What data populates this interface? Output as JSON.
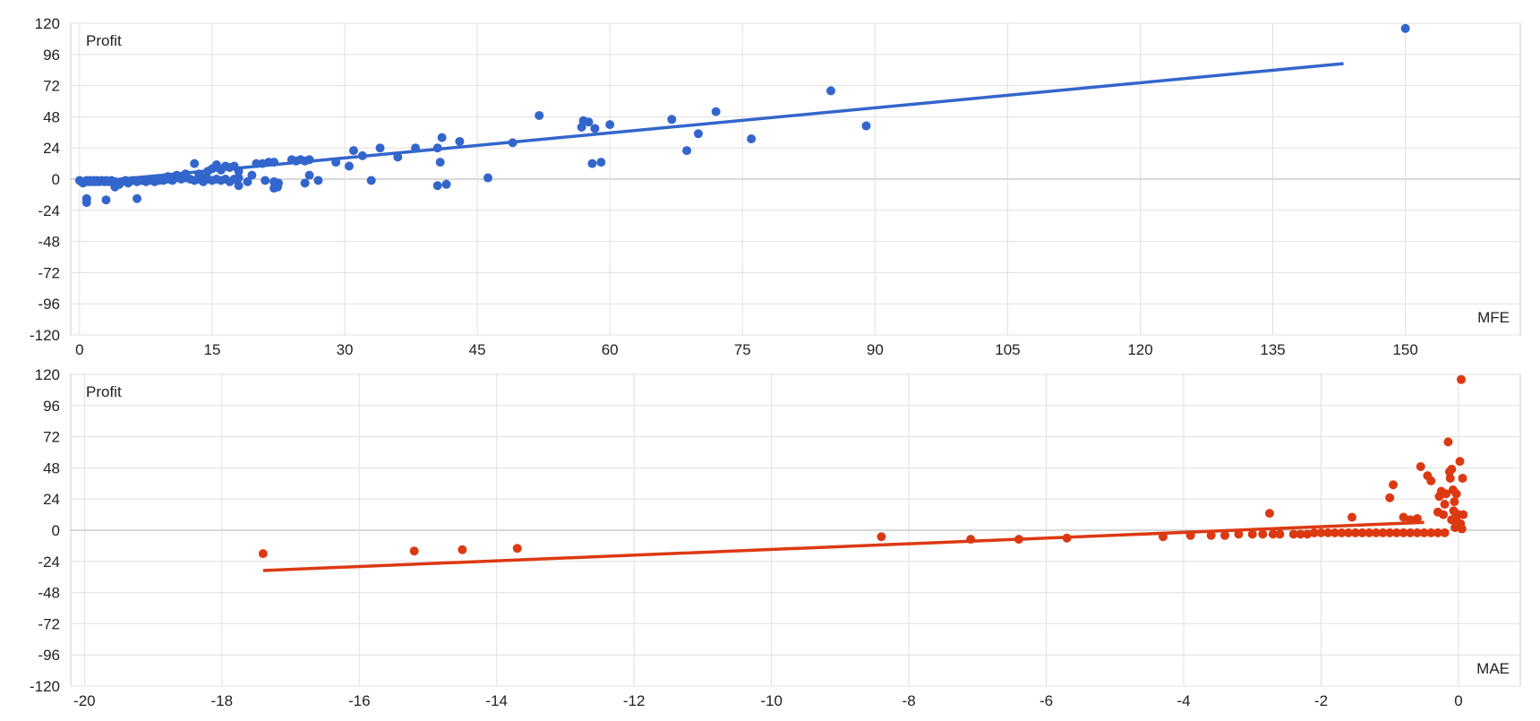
{
  "chart_data": [
    {
      "type": "scatter",
      "xlabel": "MFE",
      "ylabel": "Profit",
      "xlim": [
        -1,
        163
      ],
      "ylim": [
        -120,
        120
      ],
      "xticks": [
        0,
        15,
        30,
        45,
        60,
        75,
        90,
        105,
        120,
        135,
        150
      ],
      "yticks": [
        120,
        96,
        72,
        48,
        24,
        0,
        -24,
        -48,
        -72,
        -96,
        -120
      ],
      "grid": true,
      "color": "#3366cc",
      "trendline": {
        "x": [
          0,
          143
        ],
        "y": [
          -3,
          89
        ]
      },
      "points": [
        [
          0,
          -1
        ],
        [
          0.2,
          -2
        ],
        [
          0.4,
          -3
        ],
        [
          0.6,
          -2
        ],
        [
          0.8,
          -1
        ],
        [
          1,
          -2
        ],
        [
          1.2,
          -1
        ],
        [
          1.4,
          -2
        ],
        [
          1.6,
          -1
        ],
        [
          1.8,
          -2
        ],
        [
          2,
          -1
        ],
        [
          2.2,
          -2
        ],
        [
          2.5,
          -1
        ],
        [
          2.8,
          -2
        ],
        [
          3,
          -1
        ],
        [
          3.3,
          -2
        ],
        [
          3.6,
          -1
        ],
        [
          4,
          -2
        ],
        [
          4.4,
          -4
        ],
        [
          4.8,
          -2
        ],
        [
          5.2,
          -1
        ],
        [
          5.5,
          -3
        ],
        [
          6,
          -1
        ],
        [
          6.5,
          -2
        ],
        [
          7,
          -1
        ],
        [
          7.5,
          -2
        ],
        [
          8,
          -1
        ],
        [
          8.5,
          -2
        ],
        [
          9,
          -1
        ],
        [
          9.5,
          -1
        ],
        [
          10,
          0
        ],
        [
          10.5,
          -1
        ],
        [
          11,
          1
        ],
        [
          11.5,
          0
        ],
        [
          12,
          1
        ],
        [
          12.5,
          0
        ],
        [
          13,
          -1
        ],
        [
          13.5,
          0
        ],
        [
          14,
          -2
        ],
        [
          14.5,
          0
        ],
        [
          15,
          -1
        ],
        [
          15.5,
          0
        ],
        [
          16,
          -1
        ],
        [
          16.5,
          0
        ],
        [
          17,
          -2
        ],
        [
          17.5,
          0
        ],
        [
          18,
          1
        ],
        [
          0.8,
          -15
        ],
        [
          0.8,
          -18
        ],
        [
          3,
          -16
        ],
        [
          6.5,
          -15
        ],
        [
          4,
          -6
        ],
        [
          4.5,
          -4
        ],
        [
          10,
          2
        ],
        [
          11,
          3
        ],
        [
          12,
          4
        ],
        [
          13,
          12
        ],
        [
          13.5,
          4
        ],
        [
          14,
          1
        ],
        [
          14.5,
          6
        ],
        [
          15,
          8
        ],
        [
          15.5,
          11
        ],
        [
          16,
          7
        ],
        [
          16.5,
          10
        ],
        [
          17,
          9
        ],
        [
          17.5,
          10
        ],
        [
          18,
          -5
        ],
        [
          18,
          6
        ],
        [
          19,
          -2
        ],
        [
          19.5,
          3
        ],
        [
          20,
          12
        ],
        [
          20.7,
          12
        ],
        [
          21,
          -1
        ],
        [
          21.4,
          13
        ],
        [
          22,
          13
        ],
        [
          22,
          -2
        ],
        [
          22.5,
          -3
        ],
        [
          22.4,
          -6
        ],
        [
          22,
          -7
        ],
        [
          24,
          15
        ],
        [
          24.5,
          14
        ],
        [
          25,
          15
        ],
        [
          25.5,
          14
        ],
        [
          25.5,
          -3
        ],
        [
          26,
          3
        ],
        [
          26,
          15
        ],
        [
          27,
          -1
        ],
        [
          29,
          13
        ],
        [
          30.5,
          10
        ],
        [
          31,
          22
        ],
        [
          32,
          18
        ],
        [
          33,
          -1
        ],
        [
          34,
          24
        ],
        [
          36,
          17
        ],
        [
          38,
          24
        ],
        [
          40.5,
          -5
        ],
        [
          40.5,
          24
        ],
        [
          40.8,
          13
        ],
        [
          41,
          32
        ],
        [
          41.5,
          -4
        ],
        [
          43,
          29
        ],
        [
          46.2,
          1
        ],
        [
          49,
          28
        ],
        [
          52,
          49
        ],
        [
          56.8,
          40
        ],
        [
          57,
          45
        ],
        [
          57.6,
          44
        ],
        [
          58,
          12
        ],
        [
          58.3,
          39
        ],
        [
          59,
          13
        ],
        [
          60,
          42
        ],
        [
          67,
          46
        ],
        [
          68.7,
          22
        ],
        [
          70,
          35
        ],
        [
          72,
          52
        ],
        [
          76,
          31
        ],
        [
          85,
          68
        ],
        [
          89,
          41
        ],
        [
          150,
          116
        ]
      ]
    },
    {
      "type": "scatter",
      "xlabel": "MAE",
      "ylabel": "Profit",
      "xlim": [
        -20.2,
        0.9
      ],
      "ylim": [
        -120,
        120
      ],
      "xticks": [
        -20,
        -18,
        -16,
        -14,
        -12,
        -10,
        -8,
        -6,
        -4,
        -2,
        0
      ],
      "yticks": [
        120,
        96,
        72,
        48,
        24,
        0,
        -24,
        -48,
        -72,
        -96,
        -120
      ],
      "grid": true,
      "color": "#dc3912",
      "trendline": {
        "x": [
          -17.4,
          -0.5
        ],
        "y": [
          -31,
          6
        ]
      },
      "points": [
        [
          -17.4,
          -18
        ],
        [
          -15.2,
          -16
        ],
        [
          -14.5,
          -15
        ],
        [
          -13.7,
          -14
        ],
        [
          -8.4,
          -5
        ],
        [
          -7.1,
          -7
        ],
        [
          -6.4,
          -7
        ],
        [
          -5.7,
          -6
        ],
        [
          -4.3,
          -5
        ],
        [
          -3.9,
          -4
        ],
        [
          -3.6,
          -4
        ],
        [
          -3.4,
          -4
        ],
        [
          -3.2,
          -3
        ],
        [
          -3,
          -3
        ],
        [
          -2.85,
          -3
        ],
        [
          -2.75,
          13
        ],
        [
          -2.7,
          -3
        ],
        [
          -2.6,
          -3
        ],
        [
          -2.4,
          -3
        ],
        [
          -2.3,
          -3
        ],
        [
          -2.2,
          -3
        ],
        [
          -2.1,
          -2
        ],
        [
          -2,
          -2
        ],
        [
          -1.9,
          -2
        ],
        [
          -1.8,
          -2
        ],
        [
          -1.7,
          -2
        ],
        [
          -1.6,
          -2
        ],
        [
          -1.5,
          -2
        ],
        [
          -1.55,
          10
        ],
        [
          -1.4,
          -2
        ],
        [
          -1.3,
          -2
        ],
        [
          -1.2,
          -2
        ],
        [
          -1.1,
          -2
        ],
        [
          -1,
          -2
        ],
        [
          -0.9,
          -2
        ],
        [
          -0.8,
          -2
        ],
        [
          -0.7,
          -2
        ],
        [
          -0.6,
          -2
        ],
        [
          -0.5,
          -2
        ],
        [
          -0.4,
          -2
        ],
        [
          -0.3,
          -2
        ],
        [
          -0.2,
          -2
        ],
        [
          -1,
          25
        ],
        [
          -0.95,
          35
        ],
        [
          -0.8,
          10
        ],
        [
          -0.7,
          8
        ],
        [
          -0.6,
          9
        ],
        [
          -0.55,
          49
        ],
        [
          -0.45,
          42
        ],
        [
          -0.4,
          38
        ],
        [
          -0.3,
          14
        ],
        [
          -0.28,
          26
        ],
        [
          -0.25,
          30
        ],
        [
          -0.22,
          12
        ],
        [
          -0.2,
          20
        ],
        [
          -0.18,
          28
        ],
        [
          -0.15,
          68
        ],
        [
          -0.13,
          45
        ],
        [
          -0.12,
          40
        ],
        [
          -0.1,
          47
        ],
        [
          -0.1,
          8
        ],
        [
          -0.08,
          31
        ],
        [
          -0.07,
          15
        ],
        [
          -0.06,
          22
        ],
        [
          -0.05,
          2
        ],
        [
          -0.04,
          10
        ],
        [
          -0.03,
          28
        ],
        [
          -0.02,
          6
        ],
        [
          0,
          12
        ],
        [
          0.02,
          53
        ],
        [
          0.03,
          5
        ],
        [
          0.05,
          1
        ],
        [
          0.06,
          40
        ],
        [
          0.07,
          12
        ],
        [
          0.04,
          116
        ]
      ]
    }
  ]
}
